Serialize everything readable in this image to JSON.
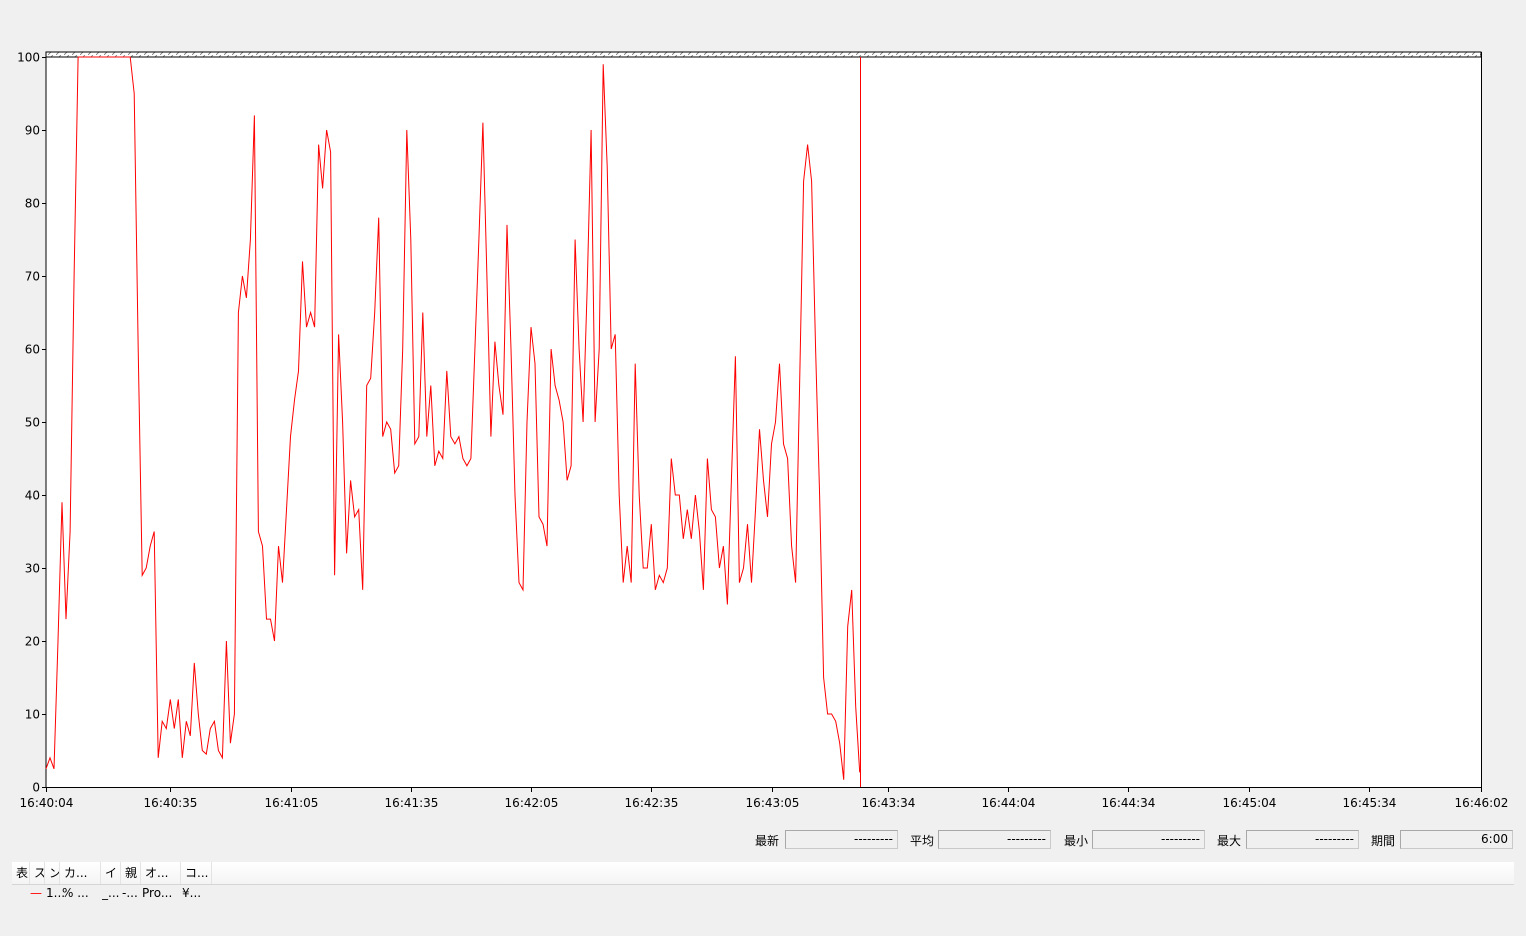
{
  "stats": [
    {
      "label": "最新",
      "value": "---------"
    },
    {
      "label": "平均",
      "value": "---------"
    },
    {
      "label": "最小",
      "value": "---------"
    },
    {
      "label": "最大",
      "value": "---------"
    },
    {
      "label": "期間",
      "value": "6:00"
    }
  ],
  "legend": {
    "headers": [
      "表",
      "ス",
      "ン",
      "カ...",
      "イ",
      "親",
      "オ...",
      "コ..."
    ],
    "row": [
      "",
      "—",
      "1...",
      "% ...",
      "_...",
      "-...",
      "Pro...",
      "¥..."
    ],
    "line_color": "#ff0000"
  },
  "chart_data": {
    "type": "line",
    "title": "",
    "xlabel": "",
    "ylabel": "",
    "ylim": [
      0,
      100
    ],
    "xlim": [
      "16:40:04",
      "16:46:02"
    ],
    "y_ticks": [
      "0",
      "10",
      "20",
      "30",
      "40",
      "50",
      "60",
      "70",
      "80",
      "90",
      "100"
    ],
    "x_ticks": [
      "16:40:04",
      "16:40:35",
      "16:41:05",
      "16:41:35",
      "16:42:05",
      "16:42:35",
      "16:43:05",
      "16:43:34",
      "16:44:04",
      "16:44:34",
      "16:45:04",
      "16:45:34",
      "16:46:02"
    ],
    "grid": false,
    "series_color": "#ff0000",
    "cursor_time": "16:43:27",
    "points": [
      [
        "16:40:04",
        2.5
      ],
      [
        "16:40:05",
        4
      ],
      [
        "16:40:06",
        2.5
      ],
      [
        "16:40:07",
        20
      ],
      [
        "16:40:08",
        39
      ],
      [
        "16:40:09",
        23
      ],
      [
        "16:40:10",
        35
      ],
      [
        "16:40:11",
        70
      ],
      [
        "16:40:12",
        100
      ],
      [
        "16:40:13",
        100
      ],
      [
        "16:40:14",
        100
      ],
      [
        "16:40:15",
        100
      ],
      [
        "16:40:16",
        100
      ],
      [
        "16:40:17",
        100
      ],
      [
        "16:40:18",
        100
      ],
      [
        "16:40:19",
        100
      ],
      [
        "16:40:20",
        100
      ],
      [
        "16:40:21",
        100
      ],
      [
        "16:40:22",
        100
      ],
      [
        "16:40:23",
        100
      ],
      [
        "16:40:24",
        100
      ],
      [
        "16:40:25",
        100
      ],
      [
        "16:40:26",
        95
      ],
      [
        "16:40:27",
        60
      ],
      [
        "16:40:28",
        29
      ],
      [
        "16:40:29",
        30
      ],
      [
        "16:40:30",
        33
      ],
      [
        "16:40:31",
        35
      ],
      [
        "16:40:32",
        4
      ],
      [
        "16:40:33",
        9
      ],
      [
        "16:40:34",
        8
      ],
      [
        "16:40:35",
        12
      ],
      [
        "16:40:36",
        8
      ],
      [
        "16:40:37",
        12
      ],
      [
        "16:40:38",
        4
      ],
      [
        "16:40:39",
        9
      ],
      [
        "16:40:40",
        7
      ],
      [
        "16:40:41",
        17
      ],
      [
        "16:40:42",
        10
      ],
      [
        "16:40:43",
        5
      ],
      [
        "16:40:44",
        4.5
      ],
      [
        "16:40:45",
        8
      ],
      [
        "16:40:46",
        9
      ],
      [
        "16:40:47",
        5
      ],
      [
        "16:40:48",
        4
      ],
      [
        "16:40:49",
        20
      ],
      [
        "16:40:50",
        6
      ],
      [
        "16:40:51",
        10
      ],
      [
        "16:40:52",
        65
      ],
      [
        "16:40:53",
        70
      ],
      [
        "16:40:54",
        67
      ],
      [
        "16:40:55",
        75
      ],
      [
        "16:40:56",
        92
      ],
      [
        "16:40:57",
        35
      ],
      [
        "16:40:58",
        33
      ],
      [
        "16:40:59",
        23
      ],
      [
        "16:41:00",
        23
      ],
      [
        "16:41:01",
        20
      ],
      [
        "16:41:02",
        33
      ],
      [
        "16:41:03",
        28
      ],
      [
        "16:41:04",
        38
      ],
      [
        "16:41:05",
        48
      ],
      [
        "16:41:06",
        53
      ],
      [
        "16:41:07",
        57
      ],
      [
        "16:41:08",
        72
      ],
      [
        "16:41:09",
        63
      ],
      [
        "16:41:10",
        65
      ],
      [
        "16:41:11",
        63
      ],
      [
        "16:41:12",
        88
      ],
      [
        "16:41:13",
        82
      ],
      [
        "16:41:14",
        90
      ],
      [
        "16:41:15",
        87
      ],
      [
        "16:41:16",
        29
      ],
      [
        "16:41:17",
        62
      ],
      [
        "16:41:18",
        50
      ],
      [
        "16:41:19",
        32
      ],
      [
        "16:41:20",
        42
      ],
      [
        "16:41:21",
        37
      ],
      [
        "16:41:22",
        38
      ],
      [
        "16:41:23",
        27
      ],
      [
        "16:41:24",
        55
      ],
      [
        "16:41:25",
        56
      ],
      [
        "16:41:26",
        65
      ],
      [
        "16:41:27",
        78
      ],
      [
        "16:41:28",
        48
      ],
      [
        "16:41:29",
        50
      ],
      [
        "16:41:30",
        49
      ],
      [
        "16:41:31",
        43
      ],
      [
        "16:41:32",
        44
      ],
      [
        "16:41:33",
        60
      ],
      [
        "16:41:34",
        90
      ],
      [
        "16:41:35",
        75
      ],
      [
        "16:41:36",
        47
      ],
      [
        "16:41:37",
        48
      ],
      [
        "16:41:38",
        65
      ],
      [
        "16:41:39",
        48
      ],
      [
        "16:41:40",
        55
      ],
      [
        "16:41:41",
        44
      ],
      [
        "16:41:42",
        46
      ],
      [
        "16:41:43",
        45
      ],
      [
        "16:41:44",
        57
      ],
      [
        "16:41:45",
        48
      ],
      [
        "16:41:46",
        47
      ],
      [
        "16:41:47",
        48
      ],
      [
        "16:41:48",
        45
      ],
      [
        "16:41:49",
        44
      ],
      [
        "16:41:50",
        45
      ],
      [
        "16:41:51",
        60
      ],
      [
        "16:41:52",
        75
      ],
      [
        "16:41:53",
        91
      ],
      [
        "16:41:54",
        70
      ],
      [
        "16:41:55",
        48
      ],
      [
        "16:41:56",
        61
      ],
      [
        "16:41:57",
        55
      ],
      [
        "16:41:58",
        51
      ],
      [
        "16:41:59",
        77
      ],
      [
        "16:42:00",
        60
      ],
      [
        "16:42:01",
        40
      ],
      [
        "16:42:02",
        28
      ],
      [
        "16:42:03",
        27
      ],
      [
        "16:42:04",
        50
      ],
      [
        "16:42:05",
        63
      ],
      [
        "16:42:06",
        58
      ],
      [
        "16:42:07",
        37
      ],
      [
        "16:42:08",
        36
      ],
      [
        "16:42:09",
        33
      ],
      [
        "16:42:10",
        60
      ],
      [
        "16:42:11",
        55
      ],
      [
        "16:42:12",
        53
      ],
      [
        "16:42:13",
        50
      ],
      [
        "16:42:14",
        42
      ],
      [
        "16:42:15",
        44
      ],
      [
        "16:42:16",
        75
      ],
      [
        "16:42:17",
        60
      ],
      [
        "16:42:18",
        50
      ],
      [
        "16:42:19",
        68
      ],
      [
        "16:42:20",
        90
      ],
      [
        "16:42:21",
        50
      ],
      [
        "16:42:22",
        60
      ],
      [
        "16:42:23",
        99
      ],
      [
        "16:42:24",
        85
      ],
      [
        "16:42:25",
        60
      ],
      [
        "16:42:26",
        62
      ],
      [
        "16:42:27",
        40
      ],
      [
        "16:42:28",
        28
      ],
      [
        "16:42:29",
        33
      ],
      [
        "16:42:30",
        28
      ],
      [
        "16:42:31",
        58
      ],
      [
        "16:42:32",
        40
      ],
      [
        "16:42:33",
        30
      ],
      [
        "16:42:34",
        30
      ],
      [
        "16:42:35",
        36
      ],
      [
        "16:42:36",
        27
      ],
      [
        "16:42:37",
        29
      ],
      [
        "16:42:38",
        28
      ],
      [
        "16:42:39",
        30
      ],
      [
        "16:42:40",
        45
      ],
      [
        "16:42:41",
        40
      ],
      [
        "16:42:42",
        40
      ],
      [
        "16:42:43",
        34
      ],
      [
        "16:42:44",
        38
      ],
      [
        "16:42:45",
        34
      ],
      [
        "16:42:46",
        40
      ],
      [
        "16:42:47",
        35
      ],
      [
        "16:42:48",
        27
      ],
      [
        "16:42:49",
        45
      ],
      [
        "16:42:50",
        38
      ],
      [
        "16:42:51",
        37
      ],
      [
        "16:42:52",
        30
      ],
      [
        "16:42:53",
        33
      ],
      [
        "16:42:54",
        25
      ],
      [
        "16:42:55",
        42
      ],
      [
        "16:42:56",
        59
      ],
      [
        "16:42:57",
        28
      ],
      [
        "16:42:58",
        30
      ],
      [
        "16:42:59",
        36
      ],
      [
        "16:43:00",
        28
      ],
      [
        "16:43:01",
        38
      ],
      [
        "16:43:02",
        49
      ],
      [
        "16:43:03",
        42
      ],
      [
        "16:43:04",
        37
      ],
      [
        "16:43:05",
        47
      ],
      [
        "16:43:06",
        50
      ],
      [
        "16:43:07",
        58
      ],
      [
        "16:43:08",
        47
      ],
      [
        "16:43:09",
        45
      ],
      [
        "16:43:10",
        33
      ],
      [
        "16:43:11",
        28
      ],
      [
        "16:43:12",
        55
      ],
      [
        "16:43:13",
        83
      ],
      [
        "16:43:14",
        88
      ],
      [
        "16:43:15",
        83
      ],
      [
        "16:43:16",
        60
      ],
      [
        "16:43:17",
        40
      ],
      [
        "16:43:18",
        15
      ],
      [
        "16:43:19",
        10
      ],
      [
        "16:43:20",
        10
      ],
      [
        "16:43:21",
        9
      ],
      [
        "16:43:22",
        6
      ],
      [
        "16:43:23",
        1
      ],
      [
        "16:43:24",
        22
      ],
      [
        "16:43:25",
        27
      ],
      [
        "16:43:26",
        11
      ],
      [
        "16:43:27",
        2
      ]
    ]
  }
}
